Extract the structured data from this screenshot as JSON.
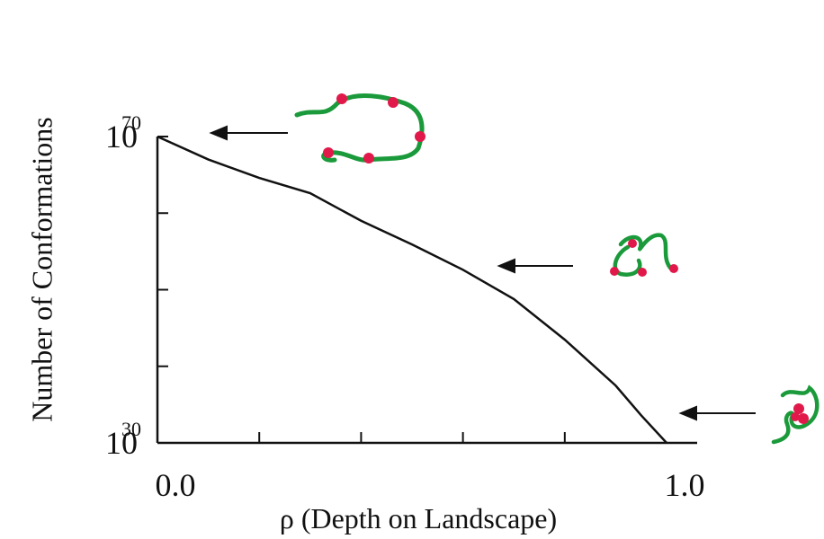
{
  "chart_data": {
    "type": "line",
    "x_label": "ρ (Depth on Landscape)",
    "y_label": "Number of Conformations",
    "x": [
      0,
      0.1,
      0.2,
      0.3,
      0.4,
      0.5,
      0.6,
      0.7,
      0.8,
      0.9,
      0.95,
      1.0
    ],
    "values": [
      1e+70,
      1e+67,
      4e+64,
      4e+62,
      1e+59,
      8e+55,
      4e+52,
      6e+48,
      3e+43,
      3e+37,
      4e+33,
      1e+30
    ],
    "color": "#111111",
    "log_scale_y": true,
    "xlim": [
      0,
      1.06
    ],
    "xticks": [
      {
        "value": 0,
        "label": "0.0"
      },
      {
        "value": 1.0,
        "label": "1.0"
      }
    ],
    "xminor_ticks": [
      0.2,
      0.4,
      0.6,
      0.8
    ],
    "ylim": [
      1e+30,
      1e+70
    ],
    "yticks": [
      {
        "value": 1e+30,
        "label": "10",
        "exponent": "30"
      },
      {
        "value": 1e+70,
        "label": "10",
        "exponent": "70"
      }
    ],
    "yminor_ticks": [
      1e+40,
      1e+50,
      1e+60
    ]
  }
}
